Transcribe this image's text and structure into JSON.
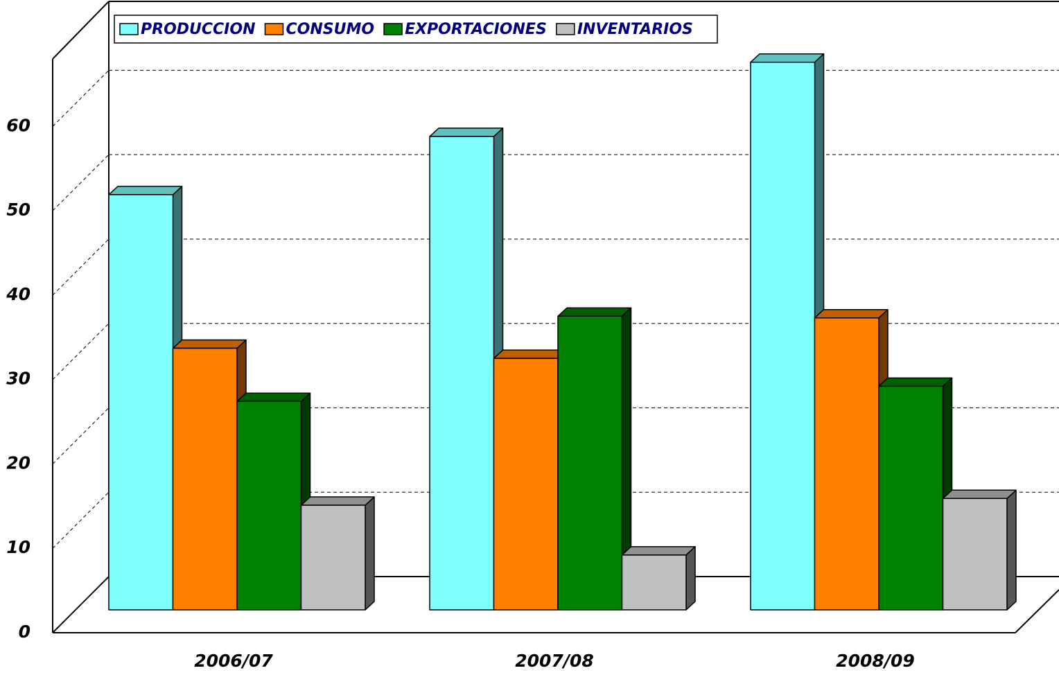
{
  "chart_data": {
    "type": "bar3d",
    "categories": [
      "2006/07",
      "2007/08",
      "2008/09"
    ],
    "series": [
      {
        "name": "PRODUCCION",
        "color": "#80FFFF",
        "values": [
          49.2,
          56.1,
          64.9
        ]
      },
      {
        "name": "CONSUMO",
        "color": "#FF8000",
        "values": [
          31.0,
          29.8,
          34.6
        ]
      },
      {
        "name": "EXPORTACIONES",
        "color": "#008000",
        "values": [
          24.7,
          34.8,
          26.5
        ]
      },
      {
        "name": "INVENTARIOS",
        "color": "#C0C0C0",
        "values": [
          12.4,
          6.5,
          13.2
        ]
      }
    ],
    "ylim": [
      0,
      68
    ],
    "yticks": [
      0,
      10,
      20,
      30,
      40,
      50,
      60
    ],
    "grid": true,
    "legend": "top"
  }
}
